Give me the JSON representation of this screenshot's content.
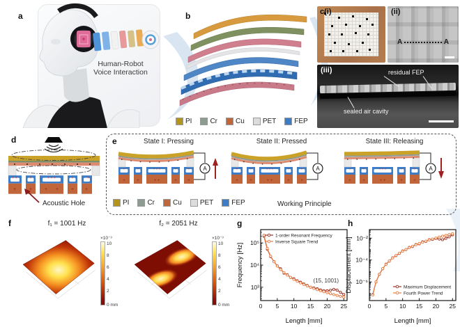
{
  "panels": {
    "a": {
      "label": "a",
      "caption_lines": [
        "Human-Robot",
        "Voice Interaction"
      ]
    },
    "b": {
      "label": "b",
      "legend": [
        {
          "name": "PI",
          "color": "#b5941c"
        },
        {
          "name": "Cr",
          "color": "#8d9b91"
        },
        {
          "name": "Cu",
          "color": "#c1663b"
        },
        {
          "name": "PET",
          "color": "#dcdcdc"
        },
        {
          "name": "FEP",
          "color": "#3d7dc8"
        }
      ]
    },
    "c": {
      "label_i": "c(i)",
      "label_ii": "(ii)",
      "label_iii": "(iii)",
      "section_left": "A",
      "section_right": "A",
      "anno_residual": "residual FEP",
      "anno_cavity": "sealed air cavity"
    },
    "d": {
      "label": "d",
      "acoustic_hole": "Acoustic Hole"
    },
    "e": {
      "label": "e",
      "states": [
        {
          "title": "State I: Pressing",
          "arrow": "up"
        },
        {
          "title": "State II: Pressed",
          "arrow": "none"
        },
        {
          "title": "State III: Releasing",
          "arrow": "down"
        }
      ],
      "ammeter_label": "A",
      "legend": [
        {
          "name": "PI",
          "color": "#b5941c"
        },
        {
          "name": "Cr",
          "color": "#8d9b91"
        },
        {
          "name": "Cu",
          "color": "#c1663b"
        },
        {
          "name": "PET",
          "color": "#dcdcdc"
        },
        {
          "name": "FEP",
          "color": "#3d7dc8"
        }
      ],
      "working_principle": "Working Principle"
    },
    "f": {
      "label": "f",
      "plots": [
        {
          "title": "f₁ = 1001 Hz"
        },
        {
          "title": "f₂ = 2051 Hz"
        }
      ],
      "colorbar": {
        "exp": "×10⁻³",
        "ticks": [
          "10",
          "8",
          "6",
          "4",
          "2"
        ],
        "bottom": "0 mm"
      }
    },
    "g": {
      "label": "g"
    },
    "h": {
      "label": "h"
    }
  },
  "chart_data": [
    {
      "type": "line",
      "title": "",
      "xlabel": "Length [mm]",
      "ylabel": "Frequency [Hz]",
      "xlim": [
        0,
        26
      ],
      "xticks": [
        0,
        5,
        10,
        15,
        20,
        25
      ],
      "ylog": true,
      "ylim": [
        250,
        400000
      ],
      "yticks": [
        1000,
        10000,
        100000
      ],
      "ytick_labels": [
        "10³",
        "10⁴",
        "10⁵"
      ],
      "legend_position": "top-left",
      "annotation": {
        "text": "(15, 1001)",
        "x": 15,
        "y": 1001
      },
      "x": [
        1,
        2,
        3,
        4,
        5,
        6,
        7,
        8,
        9,
        10,
        11,
        12,
        13,
        14,
        15,
        16,
        17,
        18,
        19,
        20,
        21,
        22,
        23,
        24,
        25
      ],
      "series": [
        {
          "name": "1-order Resonant Frequency",
          "color": "#9e3123",
          "values": [
            200000,
            52000,
            24000,
            14500,
            9200,
            6800,
            4300,
            3700,
            2750,
            2400,
            1950,
            1700,
            1400,
            1200,
            1001,
            930,
            850,
            760,
            700,
            690,
            730,
            800,
            740,
            590,
            470
          ]
        },
        {
          "name": "Inverse Square Trend",
          "color": "#e87f46",
          "values": [
            225000,
            56300,
            25000,
            14100,
            9010,
            6260,
            4600,
            3520,
            2780,
            2250,
            1860,
            1560,
            1330,
            1150,
            1001,
            880,
            780,
            695,
            625,
            565,
            510,
            465,
            425,
            390,
            360
          ]
        }
      ]
    },
    {
      "type": "line",
      "title": "",
      "xlabel": "Length [mm]",
      "ylabel": "Displacement [mm]",
      "xlim": [
        0,
        26
      ],
      "xticks": [
        0,
        5,
        10,
        15,
        20,
        25
      ],
      "ylog": true,
      "ylim": [
        2e-08,
        0.06
      ],
      "yticks": [
        1e-06,
        0.0001,
        0.01
      ],
      "ytick_labels": [
        "10⁻⁶",
        "10⁻⁴",
        "10⁻²"
      ],
      "legend_position": "bottom-right",
      "x": [
        1,
        2,
        3,
        4,
        5,
        6,
        7,
        8,
        9,
        10,
        11,
        12,
        13,
        14,
        15,
        16,
        17,
        18,
        19,
        20,
        21,
        22,
        23,
        24,
        25
      ],
      "series": [
        {
          "name": "Maximum Displacement",
          "color": "#9e3123",
          "values": [
            7e-08,
            1e-06,
            5e-06,
            1.6e-05,
            4.2e-05,
            8e-05,
            0.00016,
            0.00025,
            0.0004,
            0.00068,
            0.0009,
            0.0014,
            0.0017,
            0.0026,
            0.003,
            0.0046,
            0.005,
            0.0072,
            0.0076,
            0.0095,
            0.0082,
            0.0072,
            0.0095,
            0.013,
            0.02
          ]
        },
        {
          "name": "Fourth Power Trend",
          "color": "#e87f46",
          "values": [
            6.4e-08,
            1.02e-06,
            5.18e-06,
            1.64e-05,
            4e-05,
            8.29e-05,
            0.000154,
            0.000262,
            0.00042,
            0.00064,
            0.000937,
            0.00133,
            0.00183,
            0.00246,
            0.00324,
            0.00419,
            0.00534,
            0.00672,
            0.00834,
            0.0102,
            0.0124,
            0.015,
            0.0179,
            0.0212,
            0.025
          ]
        }
      ]
    }
  ]
}
